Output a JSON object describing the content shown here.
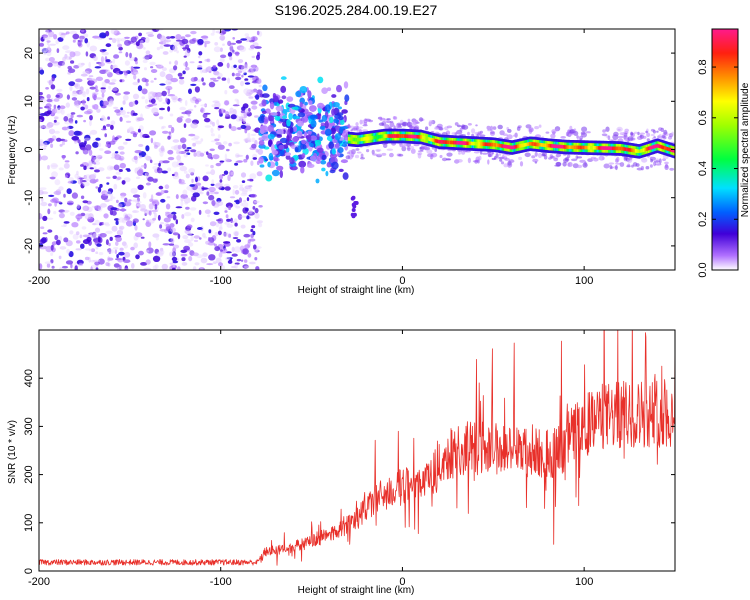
{
  "title": "S196.2025.284.00.19.E27",
  "chart_data": [
    {
      "type": "heatmap",
      "id": "spectrogram",
      "xlabel": "Height of straight line (km)",
      "ylabel": "Frequency (Hz)",
      "xlim": [
        -200,
        150
      ],
      "ylim": [
        -25,
        25
      ],
      "xticks": [
        -200,
        -100,
        0,
        100
      ],
      "yticks": [
        -20,
        -10,
        0,
        10,
        20
      ],
      "colorbar": {
        "label": "Normalized spectral amplitude",
        "range": [
          0,
          0.95
        ],
        "ticks": [
          0.0,
          0.2,
          0.4,
          0.6,
          0.8
        ],
        "tick_labels": [
          "0.0",
          "0.2",
          "0.4",
          "0.6",
          "0.8"
        ]
      },
      "regions": [
        {
          "x_range": [
            -200,
            -78
          ],
          "description": "broadband noise",
          "amplitude": 0.05
        },
        {
          "x_range": [
            -78,
            -30
          ],
          "description": "onset cluster",
          "freq_center": 4,
          "freq_spread": 6,
          "amplitude": 0.2
        },
        {
          "x_range": [
            -30,
            150
          ],
          "description": "signal band",
          "freq_center": 1.5,
          "freq_spread": 1.5,
          "amplitude": 0.85
        }
      ],
      "ridge": {
        "x": [
          -38,
          -25,
          -10,
          0,
          10,
          20,
          30,
          40,
          50,
          60,
          70,
          80,
          90,
          100,
          110,
          120,
          130,
          140,
          150
        ],
        "freq": [
          2.5,
          2.0,
          2.8,
          2.8,
          2.6,
          1.6,
          1.4,
          1.2,
          1.0,
          0.4,
          1.2,
          0.8,
          0.5,
          0.4,
          0.3,
          0.2,
          -0.4,
          0.8,
          -0.4
        ]
      }
    },
    {
      "type": "line",
      "id": "snr",
      "xlabel": "Height of straight line (km)",
      "ylabel": "SNR (10 * v/v)",
      "xlim": [
        -200,
        150
      ],
      "ylim": [
        0,
        500
      ],
      "xticks": [
        -200,
        -100,
        0,
        100
      ],
      "yticks": [
        0,
        100,
        200,
        300,
        400
      ],
      "color": "#e8302a",
      "trend": {
        "x": [
          -200,
          -80,
          -75,
          -60,
          -40,
          -25,
          -15,
          0,
          15,
          25,
          35,
          50,
          70,
          85,
          95,
          110,
          125,
          140,
          150
        ],
        "y": [
          18,
          18,
          40,
          50,
          75,
          110,
          150,
          175,
          190,
          240,
          255,
          255,
          245,
          245,
          290,
          320,
          325,
          330,
          320
        ]
      }
    }
  ]
}
